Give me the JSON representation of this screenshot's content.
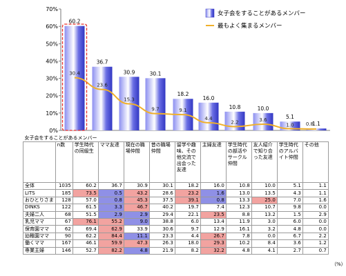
{
  "chart_data": [
    {
      "type": "bar",
      "categories": [
        "学生時代の同級生",
        "ママ友達",
        "現在の職場仲間",
        "昔の職場仲間",
        "留学や趣味、その他交流で出会った友達",
        "主婦友達",
        "学生時代の部活やサークル仲間",
        "友人紹介で知り合った友達",
        "学生時代のアルバイト仲間",
        "その他"
      ],
      "y_ticks": [
        "0%",
        "10%",
        "20%",
        "30%",
        "40%",
        "50%",
        "60%",
        "70%"
      ],
      "ylim": [
        0,
        70
      ],
      "series": [
        {
          "name": "女子会をすることがあるメンバー",
          "type": "bar",
          "color": "#4a4fd6",
          "values": [
            60.2,
            36.7,
            30.9,
            30.1,
            18.2,
            16.0,
            10.8,
            10.0,
            5.1,
            1.1
          ]
        },
        {
          "name": "最もよく集まるメンバー",
          "type": "line",
          "color": "#f0b02a",
          "values": [
            30.4,
            23.6,
            15.3,
            9.7,
            9.1,
            4.4,
            2.2,
            3.6,
            1.0,
            0.8
          ]
        }
      ],
      "highlight_category_index": 0
    },
    {
      "type": "table",
      "title": "女子会をすることがあるメンバー",
      "columns": [
        "n数",
        "学生時代の同級生",
        "ママ友達",
        "現在の職場仲間",
        "昔の職場仲間",
        "留学や趣味、その他交流で出会った友達",
        "主婦友達",
        "学生時代の部活やサークル仲間",
        "友人紹介で知り合った友達",
        "学生時代のアルバイト仲間",
        "その他"
      ],
      "rows": [
        {
          "label": "全体",
          "values": [
            "1035",
            "60.2",
            "36.7",
            "30.9",
            "30.1",
            "18.2",
            "16.0",
            "10.8",
            "10.0",
            "5.1",
            "1.1"
          ],
          "marks": [
            "",
            "",
            "",
            "",
            "",
            "",
            "",
            "",
            "",
            "",
            ""
          ]
        },
        {
          "label": "LITS",
          "values": [
            "185",
            "73.5",
            "0.5",
            "43.2",
            "28.6",
            "23.2",
            "1.6",
            "13.0",
            "13.5",
            "4.3",
            "1.1"
          ],
          "marks": [
            "",
            "hi",
            "lo",
            "hi",
            "",
            "hi",
            "lo",
            "",
            "",
            "",
            ""
          ]
        },
        {
          "label": "おひとりさま",
          "values": [
            "128",
            "57.0",
            "0.8",
            "45.3",
            "37.5",
            "39.1",
            "0.8",
            "13.3",
            "25.0",
            "7.0",
            "1.6"
          ],
          "marks": [
            "",
            "",
            "lo",
            "hi",
            "",
            "hi",
            "lo",
            "",
            "hi",
            "",
            ""
          ]
        },
        {
          "label": "DINKS",
          "values": [
            "122",
            "61.5",
            "3.3",
            "46.7",
            "40.2",
            "19.7",
            "7.4",
            "12.3",
            "10.7",
            "9.8",
            "0.0"
          ],
          "marks": [
            "",
            "",
            "lo",
            "hi",
            "",
            "",
            "",
            "",
            "",
            "",
            ""
          ]
        },
        {
          "label": "夫婦二人",
          "values": [
            "68",
            "51.5",
            "2.9",
            "2.9",
            "29.4",
            "22.1",
            "23.5",
            "8.8",
            "13.2",
            "1.5",
            "2.9"
          ],
          "marks": [
            "",
            "",
            "lo",
            "lo",
            "",
            "",
            "hi",
            "",
            "",
            "",
            ""
          ]
        },
        {
          "label": "乳児ママ",
          "values": [
            "67",
            "76.1",
            "55.2",
            "9.0",
            "38.8",
            "6.0",
            "13.4",
            "11.9",
            "3.0",
            "6.0",
            "0.0"
          ],
          "marks": [
            "",
            "hi",
            "hi",
            "lo",
            "",
            "",
            "",
            "",
            "",
            "",
            ""
          ]
        },
        {
          "label": "保育園ママ",
          "values": [
            "62",
            "69.4",
            "62.9",
            "33.9",
            "30.6",
            "9.7",
            "12.9",
            "16.1",
            "3.2",
            "4.8",
            "0.0"
          ],
          "marks": [
            "",
            "",
            "hi",
            "",
            "",
            "",
            "",
            "",
            "",
            "",
            ""
          ]
        },
        {
          "label": "幼稚園ママ",
          "values": [
            "90",
            "62.2",
            "84.4",
            "11.1",
            "23.3",
            "4.4",
            "26.7",
            "7.8",
            "0.0",
            "6.7",
            "2.2"
          ],
          "marks": [
            "",
            "",
            "hi",
            "lo",
            "",
            "",
            "hi",
            "",
            "",
            "",
            ""
          ]
        },
        {
          "label": "働くママ",
          "values": [
            "167",
            "46.1",
            "59.9",
            "47.3",
            "26.3",
            "18.0",
            "29.3",
            "10.2",
            "8.4",
            "3.6",
            "1.2"
          ],
          "marks": [
            "",
            "",
            "hi",
            "hi",
            "",
            "",
            "hi",
            "",
            "",
            "",
            ""
          ]
        },
        {
          "label": "専業主婦",
          "values": [
            "146",
            "52.7",
            "82.2",
            "4.8",
            "21.9",
            "8.2",
            "32.2",
            "4.8",
            "4.1",
            "2.7",
            "0.7"
          ],
          "marks": [
            "",
            "",
            "hi",
            "lo",
            "",
            "",
            "hi",
            "",
            "",
            "",
            ""
          ]
        }
      ],
      "unit_note": "（%）"
    }
  ]
}
